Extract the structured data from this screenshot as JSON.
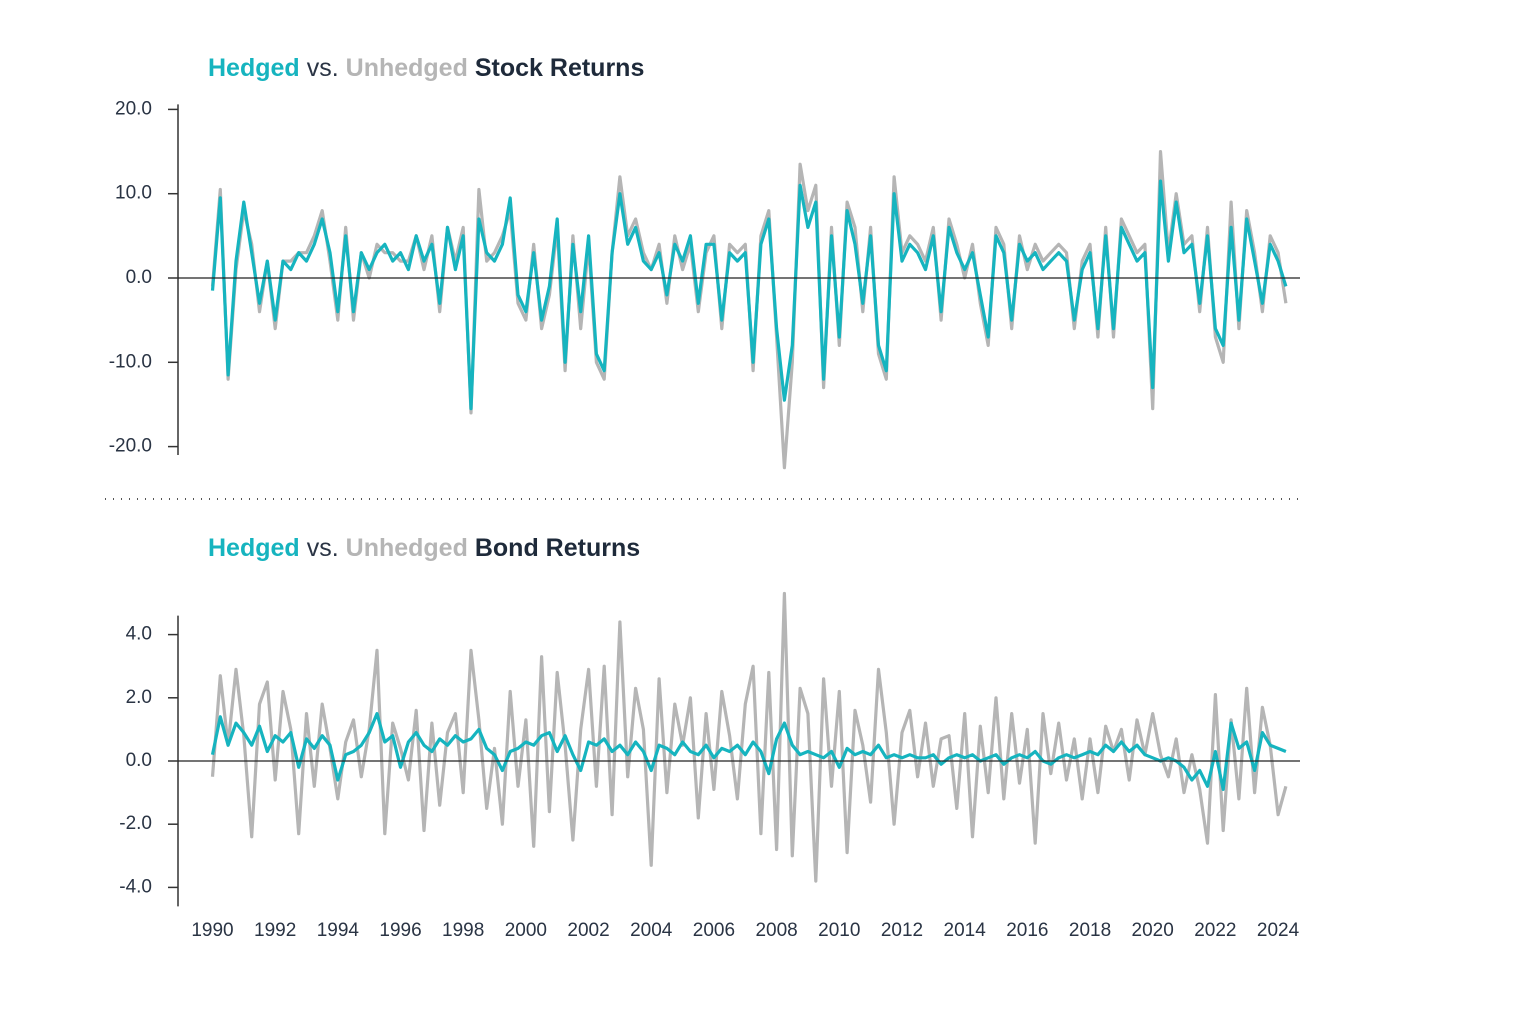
{
  "chart_data": [
    {
      "type": "line",
      "title_connector": "vs.",
      "title_subject": "Stock Returns",
      "x": [
        1990,
        1990.25,
        1990.5,
        1990.75,
        1991,
        1991.25,
        1991.5,
        1991.75,
        1992,
        1992.25,
        1992.5,
        1992.75,
        1993,
        1993.25,
        1993.5,
        1993.75,
        1994,
        1994.25,
        1994.5,
        1994.75,
        1995,
        1995.25,
        1995.5,
        1995.75,
        1996,
        1996.25,
        1996.5,
        1996.75,
        1997,
        1997.25,
        1997.5,
        1997.75,
        1998,
        1998.25,
        1998.5,
        1998.75,
        1999,
        1999.25,
        1999.5,
        1999.75,
        2000,
        2000.25,
        2000.5,
        2000.75,
        2001,
        2001.25,
        2001.5,
        2001.75,
        2002,
        2002.25,
        2002.5,
        2002.75,
        2003,
        2003.25,
        2003.5,
        2003.75,
        2004,
        2004.25,
        2004.5,
        2004.75,
        2005,
        2005.25,
        2005.5,
        2005.75,
        2006,
        2006.25,
        2006.5,
        2006.75,
        2007,
        2007.25,
        2007.5,
        2007.75,
        2008,
        2008.25,
        2008.5,
        2008.75,
        2009,
        2009.25,
        2009.5,
        2009.75,
        2010,
        2010.25,
        2010.5,
        2010.75,
        2011,
        2011.25,
        2011.5,
        2011.75,
        2012,
        2012.25,
        2012.5,
        2012.75,
        2013,
        2013.25,
        2013.5,
        2013.75,
        2014,
        2014.25,
        2014.5,
        2014.75,
        2015,
        2015.25,
        2015.5,
        2015.75,
        2016,
        2016.25,
        2016.5,
        2016.75,
        2017,
        2017.25,
        2017.5,
        2017.75,
        2018,
        2018.25,
        2018.5,
        2018.75,
        2019,
        2019.25,
        2019.5,
        2019.75,
        2020,
        2020.25,
        2020.5,
        2020.75,
        2021,
        2021.25,
        2021.5,
        2021.75,
        2022,
        2022.25,
        2022.5,
        2022.75,
        2023,
        2023.25,
        2023.5,
        2023.75,
        2024,
        2024.25
      ],
      "series": [
        {
          "name": "Unhedged",
          "color": "#b5b5b5",
          "values": [
            -1,
            10.5,
            -12,
            1,
            8,
            4,
            -4,
            2,
            -6,
            2,
            2,
            3,
            3,
            5,
            8,
            2,
            -5,
            6,
            -5,
            3,
            0,
            4,
            3,
            3,
            2,
            2,
            5,
            1,
            5,
            -4,
            6,
            2,
            6,
            -16,
            10.5,
            2,
            3,
            5,
            8,
            -3,
            -5,
            4,
            -6,
            -2,
            6,
            -11,
            5,
            -6,
            4,
            -10,
            -12,
            3,
            12,
            5,
            7,
            3,
            1,
            4,
            -3,
            5,
            1,
            4,
            -4,
            3,
            5,
            -6,
            4,
            3,
            4,
            -11,
            5,
            8,
            -7,
            -22.5,
            -10,
            13.5,
            8,
            11,
            -13,
            6,
            -8,
            9,
            6,
            -4,
            6,
            -9,
            -12,
            12,
            3,
            5,
            4,
            2,
            6,
            -5,
            7,
            4,
            0,
            4,
            -3,
            -8,
            6,
            4,
            -6,
            5,
            1,
            4,
            2,
            3,
            4,
            3,
            -6,
            2,
            4,
            -7,
            6,
            -7,
            7,
            5,
            3,
            4,
            -15.5,
            15,
            3,
            10,
            4,
            5,
            -4,
            6,
            -7,
            -10,
            9,
            -6,
            8,
            3,
            -4,
            5,
            3,
            -3
          ]
        },
        {
          "name": "Hedged",
          "color": "#16b4bf",
          "values": [
            -1.5,
            9.5,
            -11.5,
            2,
            9,
            3,
            -3,
            2,
            -5,
            2,
            1,
            3,
            2,
            4,
            7,
            3,
            -4,
            5,
            -4,
            3,
            1,
            3,
            4,
            2,
            3,
            1,
            5,
            2,
            4,
            -3,
            6,
            1,
            5,
            -15.5,
            7,
            3,
            2,
            4,
            9.5,
            -2,
            -4,
            3,
            -5,
            -1,
            7,
            -10,
            4,
            -4,
            5,
            -9,
            -11,
            3,
            10,
            4,
            6,
            2,
            1,
            3,
            -2,
            4,
            2,
            5,
            -3,
            4,
            4,
            -5,
            3,
            2,
            3,
            -10,
            4,
            7,
            -6,
            -14.5,
            -8,
            11,
            6,
            9,
            -12,
            5,
            -7,
            8,
            4,
            -3,
            5,
            -8,
            -11,
            10,
            2,
            4,
            3,
            1,
            5,
            -4,
            6,
            3,
            1,
            3,
            -2,
            -7,
            5,
            3,
            -5,
            4,
            2,
            3,
            1,
            2,
            3,
            2,
            -5,
            1,
            3,
            -6,
            5,
            -6,
            6,
            4,
            2,
            3,
            -13,
            11.5,
            2,
            9,
            3,
            4,
            -3,
            5,
            -6,
            -8,
            6,
            -5,
            7,
            2,
            -3,
            4,
            2,
            -1
          ]
        }
      ],
      "xlim": [
        1988.9,
        2024.7
      ],
      "ylim": [
        -21,
        20.6
      ],
      "yticks": [
        {
          "value": 20,
          "label": "20.0"
        },
        {
          "value": 10,
          "label": "10.0"
        },
        {
          "value": 0,
          "label": "0.0"
        },
        {
          "value": -10,
          "label": "-10.0"
        },
        {
          "value": -20,
          "label": "-20.0"
        }
      ]
    },
    {
      "type": "line",
      "title_connector": "vs.",
      "title_subject": "Bond Returns",
      "x": [
        1990,
        1990.25,
        1990.5,
        1990.75,
        1991,
        1991.25,
        1991.5,
        1991.75,
        1992,
        1992.25,
        1992.5,
        1992.75,
        1993,
        1993.25,
        1993.5,
        1993.75,
        1994,
        1994.25,
        1994.5,
        1994.75,
        1995,
        1995.25,
        1995.5,
        1995.75,
        1996,
        1996.25,
        1996.5,
        1996.75,
        1997,
        1997.25,
        1997.5,
        1997.75,
        1998,
        1998.25,
        1998.5,
        1998.75,
        1999,
        1999.25,
        1999.5,
        1999.75,
        2000,
        2000.25,
        2000.5,
        2000.75,
        2001,
        2001.25,
        2001.5,
        2001.75,
        2002,
        2002.25,
        2002.5,
        2002.75,
        2003,
        2003.25,
        2003.5,
        2003.75,
        2004,
        2004.25,
        2004.5,
        2004.75,
        2005,
        2005.25,
        2005.5,
        2005.75,
        2006,
        2006.25,
        2006.5,
        2006.75,
        2007,
        2007.25,
        2007.5,
        2007.75,
        2008,
        2008.25,
        2008.5,
        2008.75,
        2009,
        2009.25,
        2009.5,
        2009.75,
        2010,
        2010.25,
        2010.5,
        2010.75,
        2011,
        2011.25,
        2011.5,
        2011.75,
        2012,
        2012.25,
        2012.5,
        2012.75,
        2013,
        2013.25,
        2013.5,
        2013.75,
        2014,
        2014.25,
        2014.5,
        2014.75,
        2015,
        2015.25,
        2015.5,
        2015.75,
        2016,
        2016.25,
        2016.5,
        2016.75,
        2017,
        2017.25,
        2017.5,
        2017.75,
        2018,
        2018.25,
        2018.5,
        2018.75,
        2019,
        2019.25,
        2019.5,
        2019.75,
        2020,
        2020.25,
        2020.5,
        2020.75,
        2021,
        2021.25,
        2021.5,
        2021.75,
        2022,
        2022.25,
        2022.5,
        2022.75,
        2023,
        2023.25,
        2023.5,
        2023.75,
        2024,
        2024.25
      ],
      "series": [
        {
          "name": "Unhedged",
          "color": "#b5b5b5",
          "values": [
            -0.5,
            2.7,
            0.5,
            2.9,
            0.8,
            -2.4,
            1.8,
            2.5,
            -0.6,
            2.2,
            1.0,
            -2.3,
            1.5,
            -0.8,
            1.8,
            0.4,
            -1.2,
            0.6,
            1.3,
            -0.5,
            1.0,
            3.5,
            -2.3,
            1.2,
            0.4,
            -0.6,
            1.6,
            -2.2,
            1.2,
            -1.4,
            0.9,
            1.5,
            -1.0,
            3.5,
            1.3,
            -1.5,
            0.4,
            -2.0,
            2.2,
            -0.8,
            1.3,
            -2.7,
            3.3,
            -1.6,
            2.8,
            0.5,
            -2.5,
            1.0,
            2.9,
            -0.8,
            3.0,
            -1.7,
            4.4,
            -0.5,
            2.3,
            1.0,
            -3.3,
            2.6,
            -1.0,
            1.8,
            0.5,
            2.0,
            -1.8,
            1.5,
            -0.9,
            2.2,
            0.8,
            -1.2,
            1.8,
            3.0,
            -2.3,
            2.8,
            -2.8,
            5.3,
            -3.0,
            2.3,
            1.5,
            -3.8,
            2.6,
            -0.8,
            2.2,
            -2.9,
            1.6,
            0.5,
            -1.3,
            2.9,
            0.9,
            -2.0,
            0.9,
            1.6,
            -0.5,
            1.2,
            -0.8,
            0.7,
            0.8,
            -1.5,
            1.5,
            -2.4,
            1.1,
            -1.0,
            2.0,
            -1.2,
            1.5,
            -0.7,
            1.0,
            -2.6,
            1.5,
            -0.4,
            1.2,
            -0.6,
            0.7,
            -1.2,
            0.7,
            -1.0,
            1.1,
            0.3,
            1.0,
            -0.6,
            1.3,
            0.2,
            1.5,
            0.2,
            -0.5,
            0.7,
            -1.0,
            0.2,
            -0.9,
            -2.6,
            2.1,
            -2.2,
            1.3,
            -1.2,
            2.3,
            -1.0,
            1.7,
            0.5,
            -1.7,
            -0.8
          ]
        },
        {
          "name": "Hedged",
          "color": "#16b4bf",
          "values": [
            0.2,
            1.4,
            0.5,
            1.2,
            0.9,
            0.5,
            1.1,
            0.3,
            0.8,
            0.6,
            0.9,
            -0.2,
            0.7,
            0.4,
            0.8,
            0.5,
            -0.6,
            0.2,
            0.3,
            0.5,
            0.9,
            1.5,
            0.6,
            0.8,
            -0.2,
            0.6,
            0.9,
            0.5,
            0.3,
            0.7,
            0.5,
            0.8,
            0.6,
            0.7,
            1.0,
            0.4,
            0.2,
            -0.3,
            0.3,
            0.4,
            0.6,
            0.5,
            0.8,
            0.9,
            0.3,
            0.8,
            0.2,
            -0.3,
            0.6,
            0.5,
            0.7,
            0.3,
            0.5,
            0.2,
            0.6,
            0.3,
            -0.3,
            0.5,
            0.4,
            0.2,
            0.6,
            0.3,
            0.2,
            0.5,
            0.1,
            0.4,
            0.3,
            0.5,
            0.2,
            0.6,
            0.3,
            -0.4,
            0.7,
            1.2,
            0.5,
            0.2,
            0.3,
            0.2,
            0.1,
            0.3,
            -0.2,
            0.4,
            0.2,
            0.3,
            0.2,
            0.5,
            0.1,
            0.2,
            0.1,
            0.2,
            0.1,
            0.1,
            0.2,
            -0.1,
            0.1,
            0.2,
            0.1,
            0.2,
            0.0,
            0.1,
            0.2,
            -0.1,
            0.1,
            0.2,
            0.1,
            0.3,
            0.0,
            -0.1,
            0.1,
            0.2,
            0.1,
            0.2,
            0.3,
            0.2,
            0.5,
            0.3,
            0.6,
            0.3,
            0.5,
            0.2,
            0.1,
            0.0,
            0.1,
            0.0,
            -0.2,
            -0.6,
            -0.3,
            -0.8,
            0.3,
            -0.9,
            1.2,
            0.4,
            0.6,
            -0.3,
            0.9,
            0.5,
            0.4,
            0.3
          ]
        }
      ],
      "xlim": [
        1988.9,
        2024.7
      ],
      "ylim": [
        -4.6,
        4.6
      ],
      "xticks": [
        1990,
        1992,
        1994,
        1996,
        1998,
        2000,
        2002,
        2004,
        2006,
        2008,
        2010,
        2012,
        2014,
        2016,
        2018,
        2020,
        2022,
        2024
      ],
      "yticks": [
        {
          "value": 4,
          "label": "4.0"
        },
        {
          "value": 2,
          "label": "2.0"
        },
        {
          "value": 0,
          "label": "0.0"
        },
        {
          "value": -2,
          "label": "-2.0"
        },
        {
          "value": -4,
          "label": "-4.0"
        }
      ]
    }
  ]
}
